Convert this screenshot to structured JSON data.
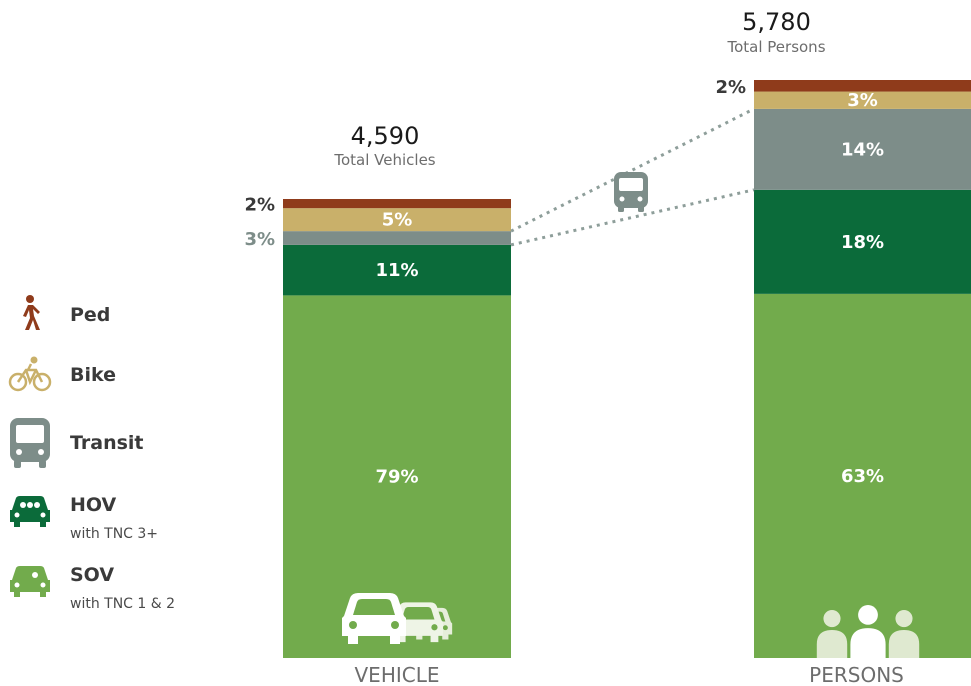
{
  "colors": {
    "ped": "#8f3b1b",
    "bike": "#c9b06a",
    "transit": "#7d8d89",
    "hov": "#0b6b3a",
    "sov": "#72ab4c",
    "connector": "#8e9e9a",
    "text_dark": "#1a1a1a",
    "text_gray": "#6d6d6d",
    "label_gray": "#7d8d89"
  },
  "legend": {
    "items": [
      {
        "key": "ped",
        "label": "Ped",
        "sub": "",
        "icon": "pedestrian-icon"
      },
      {
        "key": "bike",
        "label": "Bike",
        "sub": "",
        "icon": "bicycle-icon"
      },
      {
        "key": "transit",
        "label": "Transit",
        "sub": "",
        "icon": "bus-icon"
      },
      {
        "key": "hov",
        "label": "HOV",
        "sub": "with TNC 3+",
        "icon": "hov-car-icon"
      },
      {
        "key": "sov",
        "label": "SOV",
        "sub": "with TNC 1 & 2",
        "icon": "sov-car-icon"
      }
    ]
  },
  "chart_data": {
    "type": "bar",
    "stacked": true,
    "normalized_percent": true,
    "categories": [
      "VEHICLE",
      "PERSONS"
    ],
    "totals": [
      {
        "value": "4,590",
        "label": "Total Vehicles"
      },
      {
        "value": "5,780",
        "label": "Total Persons"
      }
    ],
    "series": [
      {
        "name": "SOV",
        "key": "sov",
        "values": [
          79,
          63
        ],
        "labels": [
          "79%",
          "63%"
        ]
      },
      {
        "name": "HOV",
        "key": "hov",
        "values": [
          11,
          18
        ],
        "labels": [
          "11%",
          "18%"
        ]
      },
      {
        "name": "Transit",
        "key": "transit",
        "values": [
          3,
          14
        ],
        "labels": [
          "3%",
          "14%"
        ]
      },
      {
        "name": "Bike",
        "key": "bike",
        "values": [
          5,
          3
        ],
        "labels": [
          "5%",
          "3%"
        ]
      },
      {
        "name": "Ped",
        "key": "ped",
        "values": [
          2,
          2
        ],
        "labels": [
          "2%",
          "2%"
        ]
      }
    ],
    "ylim": [
      0,
      100
    ],
    "grid": false,
    "legend_position": "left"
  }
}
